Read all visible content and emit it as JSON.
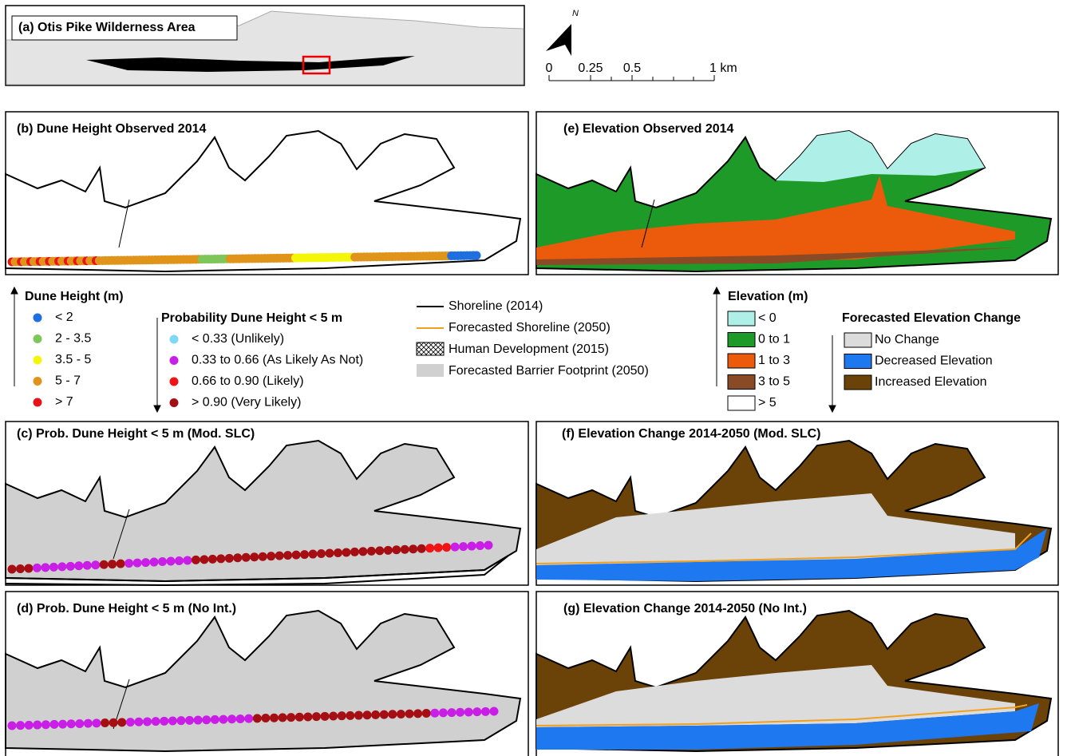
{
  "panels": {
    "a": "(a) Otis Pike Wilderness Area",
    "b": "(b) Dune Height Observed 2014",
    "c": "(c) Prob. Dune Height < 5 m (Mod. SLC)",
    "d": "(d) Prob. Dune Height < 5 m (No Int.)",
    "e": "(e) Elevation Observed 2014",
    "f": "(f) Elevation Change 2014-2050 (Mod. SLC)",
    "g": "(g) Elevation Change 2014-2050 (No Int.)"
  },
  "north": "N",
  "scale_bar": [
    "0",
    "0.25",
    "0.5",
    "1 km"
  ],
  "legend_dune": {
    "title": "Dune Height (m)",
    "items": [
      {
        "label": "< 2",
        "color": "#1f6fe0"
      },
      {
        "label": "2 - 3.5",
        "color": "#7fc65a"
      },
      {
        "label": "3.5 - 5",
        "color": "#f5f50a"
      },
      {
        "label": "5 - 7",
        "color": "#e0951a"
      },
      {
        "label": "> 7",
        "color": "#e8141a"
      }
    ]
  },
  "legend_prob": {
    "title": "Probability Dune Height < 5 m",
    "items": [
      {
        "label": "< 0.33 (Unlikely)",
        "color": "#7fd8f5"
      },
      {
        "label": "0.33 to 0.66 (As Likely As Not)",
        "color": "#c81ee6"
      },
      {
        "label": "0.66 to 0.90 (Likely)",
        "color": "#f01414"
      },
      {
        "label": "> 0.90 (Very Likely)",
        "color": "#a50f14"
      }
    ]
  },
  "legend_lines": {
    "items": [
      {
        "label": "Shoreline (2014)"
      },
      {
        "label": "Forecasted Shoreline (2050)"
      },
      {
        "label": "Human Development (2015)"
      },
      {
        "label": "Forecasted Barrier Footprint (2050)"
      }
    ]
  },
  "legend_elev": {
    "title": "Elevation (m)",
    "items": [
      {
        "label": "< 0",
        "color": "#aef0e8"
      },
      {
        "label": "0 to 1",
        "color": "#1e9a28"
      },
      {
        "label": "1 to 3",
        "color": "#ec5a0c"
      },
      {
        "label": "3 to 5",
        "color": "#8a4a26"
      },
      {
        "label": "> 5",
        "color": "#ffffff"
      }
    ]
  },
  "legend_change": {
    "title": "Forecasted Elevation Change",
    "items": [
      {
        "label": "No Change",
        "color": "#dcdcdc"
      },
      {
        "label": "Decreased Elevation",
        "color": "#1e78f0"
      },
      {
        "label": "Increased Elevation",
        "color": "#6b4208"
      }
    ]
  }
}
